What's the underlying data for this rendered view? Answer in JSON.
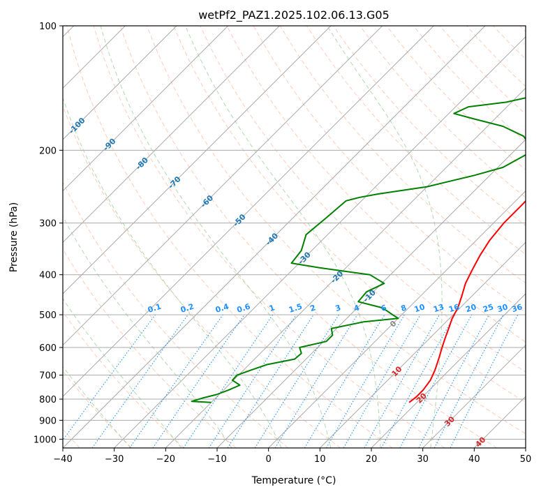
{
  "chart_data": {
    "type": "skew-t",
    "title": "wetPf2_PAZ1.2025.102.06.13.G05",
    "xlabel": "Temperature (°C)",
    "ylabel": "Pressure (hPa)",
    "xlim": [
      -40,
      50
    ],
    "ylim": [
      1050,
      100
    ],
    "x_ticks": [
      -40,
      -30,
      -20,
      -10,
      0,
      10,
      20,
      30,
      40,
      50
    ],
    "x_tick_labels": [
      "−40",
      "−30",
      "−20",
      "−10",
      "0",
      "10",
      "20",
      "30",
      "40",
      "50"
    ],
    "y_ticks": [
      100,
      200,
      300,
      400,
      500,
      600,
      700,
      800,
      900,
      1000
    ],
    "y_tick_labels": [
      "100",
      "200",
      "300",
      "400",
      "500",
      "600",
      "700",
      "800",
      "900",
      "1000"
    ],
    "grid": true,
    "colors": {
      "temperature": "#ff0000",
      "dewpoint": "#008000",
      "isotherm": "#aaaaaa",
      "dry_adiabat": "#ffa07a",
      "moist_adiabat": "#90c890",
      "mixing_ratio": "#1e90ff",
      "label_blue": "#1f77b4",
      "label_red": "#d62728",
      "zero_label": "#888888"
    },
    "series": [
      {
        "role": "temperature",
        "points": [
          {
            "p": 815,
            "t": 18.5
          },
          {
            "p": 790,
            "t": 18.8
          },
          {
            "p": 760,
            "t": 18.8
          },
          {
            "p": 720,
            "t": 18.3
          },
          {
            "p": 680,
            "t": 17.2
          },
          {
            "p": 640,
            "t": 15.8
          },
          {
            "p": 600,
            "t": 14.2
          },
          {
            "p": 570,
            "t": 13.0
          },
          {
            "p": 540,
            "t": 11.8
          },
          {
            "p": 510,
            "t": 10.5
          },
          {
            "p": 480,
            "t": 9.5
          },
          {
            "p": 450,
            "t": 8.0
          },
          {
            "p": 420,
            "t": 6.3
          },
          {
            "p": 390,
            "t": 5.0
          },
          {
            "p": 360,
            "t": 3.7
          },
          {
            "p": 330,
            "t": 2.6
          },
          {
            "p": 300,
            "t": 2.0
          },
          {
            "p": 270,
            "t": 2.0
          },
          {
            "p": 240,
            "t": 1.8
          },
          {
            "p": 220,
            "t": 1.6
          },
          {
            "p": 205,
            "t": 2.0
          },
          {
            "p": 195,
            "t": 3.6
          },
          {
            "p": 185,
            "t": 6.2
          },
          {
            "p": 170,
            "t": 8.5
          },
          {
            "p": 155,
            "t": 9.7
          },
          {
            "p": 140,
            "t": 10.6
          },
          {
            "p": 130,
            "t": 11.2
          },
          {
            "p": 120,
            "t": 11.3
          },
          {
            "p": 110,
            "t": 11.7
          },
          {
            "p": 100,
            "t": 13.2
          }
        ]
      },
      {
        "role": "dewpoint",
        "points": [
          {
            "p": 815,
            "t": -20.0
          },
          {
            "p": 810,
            "t": -24.0
          },
          {
            "p": 795,
            "t": -22.5
          },
          {
            "p": 780,
            "t": -20.5
          },
          {
            "p": 760,
            "t": -19.0
          },
          {
            "p": 740,
            "t": -17.8
          },
          {
            "p": 720,
            "t": -20.2
          },
          {
            "p": 700,
            "t": -20.3
          },
          {
            "p": 680,
            "t": -18.5
          },
          {
            "p": 660,
            "t": -16.5
          },
          {
            "p": 640,
            "t": -12.2
          },
          {
            "p": 620,
            "t": -12.0
          },
          {
            "p": 600,
            "t": -13.5
          },
          {
            "p": 580,
            "t": -9.5
          },
          {
            "p": 560,
            "t": -9.5
          },
          {
            "p": 540,
            "t": -11.0
          },
          {
            "p": 520,
            "t": -6.0
          },
          {
            "p": 510,
            "t": 0.0
          },
          {
            "p": 500,
            "t": -1.8
          },
          {
            "p": 490,
            "t": -3.5
          },
          {
            "p": 480,
            "t": -5.5
          },
          {
            "p": 465,
            "t": -11.0
          },
          {
            "p": 440,
            "t": -11.3
          },
          {
            "p": 420,
            "t": -9.5
          },
          {
            "p": 400,
            "t": -14.0
          },
          {
            "p": 385,
            "t": -25.0
          },
          {
            "p": 375,
            "t": -31.5
          },
          {
            "p": 350,
            "t": -32.0
          },
          {
            "p": 320,
            "t": -34.2
          },
          {
            "p": 290,
            "t": -33.5
          },
          {
            "p": 265,
            "t": -33.0
          },
          {
            "p": 260,
            "t": -31.0
          },
          {
            "p": 255,
            "t": -28.0
          },
          {
            "p": 245,
            "t": -20.0
          },
          {
            "p": 230,
            "t": -13.0
          },
          {
            "p": 220,
            "t": -9.0
          },
          {
            "p": 205,
            "t": -7.0
          },
          {
            "p": 195,
            "t": -8.0
          },
          {
            "p": 185,
            "t": -11.0
          },
          {
            "p": 175,
            "t": -17.0
          },
          {
            "p": 168,
            "t": -24.0
          },
          {
            "p": 163,
            "t": -29.0
          },
          {
            "p": 157,
            "t": -27.5
          },
          {
            "p": 153,
            "t": -21.0
          },
          {
            "p": 145,
            "t": -14.5
          },
          {
            "p": 130,
            "t": -14.0
          },
          {
            "p": 120,
            "t": -13.5
          },
          {
            "p": 110,
            "t": -9.5
          },
          {
            "p": 100,
            "t": -5.0
          }
        ]
      }
    ],
    "dry_adiabat_thetas_c": [
      -50,
      -40,
      -30,
      -20,
      -10,
      0,
      10,
      20,
      30,
      40,
      50,
      60,
      70,
      80,
      90,
      100,
      110,
      120,
      130,
      140,
      150,
      160,
      170,
      180,
      190,
      200,
      210,
      220
    ],
    "moist_adiabat_temps_c": [
      -30,
      -20,
      -10,
      0,
      10,
      20,
      30
    ],
    "mixing_ratio_labels": [
      "0.1",
      "0.2",
      "0.4",
      "0.6",
      "1",
      "1.5",
      "2",
      "3",
      "4",
      "6",
      "8",
      "10",
      "13",
      "16",
      "20",
      "25",
      "30",
      "36"
    ],
    "mixing_ratio_values_gkg": [
      0.1,
      0.2,
      0.4,
      0.6,
      1,
      1.5,
      2,
      3,
      4,
      6,
      8,
      10,
      13,
      16,
      20,
      25,
      30,
      36
    ],
    "isotherm_labels": [
      {
        "text": "-100",
        "t": -100
      },
      {
        "text": "-90",
        "t": -90
      },
      {
        "text": "-80",
        "t": -80
      },
      {
        "text": "-70",
        "t": -70
      },
      {
        "text": "-60",
        "t": -60
      },
      {
        "text": "-50",
        "t": -50
      },
      {
        "text": "-40",
        "t": -40
      },
      {
        "text": "-30",
        "t": -30
      },
      {
        "text": "-20",
        "t": -20
      },
      {
        "text": "-10",
        "t": -10
      },
      {
        "text": "0",
        "t": 0
      },
      {
        "text": "10",
        "t": 10
      },
      {
        "text": "20",
        "t": 20
      },
      {
        "text": "30",
        "t": 30
      },
      {
        "text": "40",
        "t": 40
      }
    ]
  }
}
